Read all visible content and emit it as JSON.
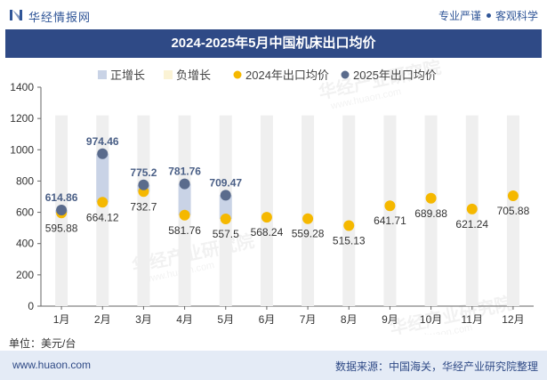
{
  "header": {
    "brand": "华经情报网",
    "slogan_left": "专业严谨",
    "slogan_right": "客观科学"
  },
  "chart_data": {
    "type": "range-dot",
    "title": "2024-2025年5月中国机床出口均价",
    "categories": [
      "1月",
      "2月",
      "3月",
      "4月",
      "5月",
      "6月",
      "7月",
      "8月",
      "9月",
      "10月",
      "11月",
      "12月"
    ],
    "legend": [
      "正增长",
      "负增长",
      "2024年出口均价",
      "2025年出口均价"
    ],
    "legend_position": "top",
    "series": [
      {
        "name": "2024年出口均价",
        "values": [
          595.88,
          664.12,
          732.7,
          581.76,
          557.5,
          568.24,
          559.28,
          515.13,
          641.71,
          689.88,
          621.24,
          705.88
        ]
      },
      {
        "name": "2025年出口均价",
        "values": [
          614.86,
          974.46,
          775.2,
          781.76,
          709.47,
          null,
          null,
          null,
          null,
          null,
          null,
          null
        ]
      }
    ],
    "y_ticks": [
      "0",
      "200",
      "400",
      "600",
      "800",
      "1000",
      "1200",
      "1400"
    ],
    "ylim": [
      0,
      1400
    ],
    "grid": false,
    "unit": "单位：美元/台",
    "watermark": "华经产业研究院",
    "watermark_url": "www.huaon.com"
  },
  "colors": {
    "dot_2024": "#f5b800",
    "dot_2025": "#5a6b8c",
    "band_positive": "#c9d3e6",
    "band_negative": "#fbf3d5",
    "column": "#efefef",
    "title_bg": "#2f4a86"
  },
  "footer": {
    "website": "www.huaon.com",
    "source": "数据来源：中国海关，华经产业研究院整理"
  }
}
